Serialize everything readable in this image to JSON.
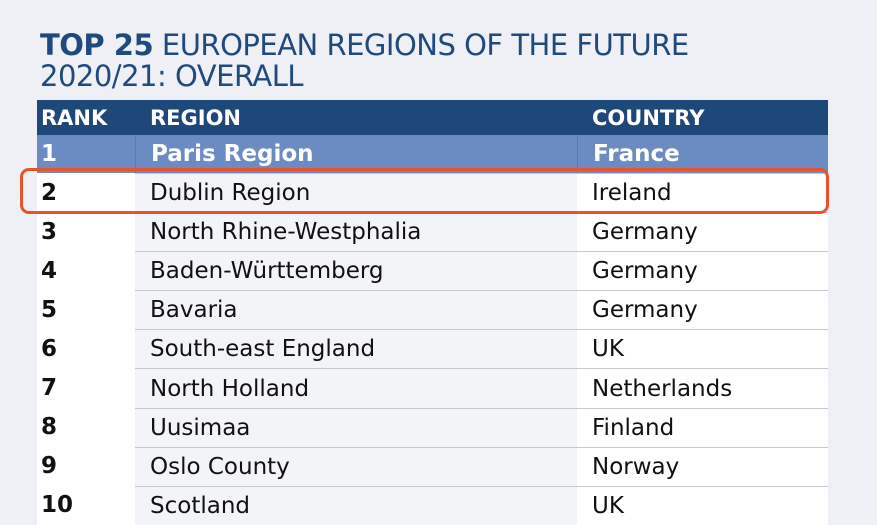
{
  "title": {
    "bold": "TOP 25",
    "rest_line1": " EUROPEAN REGIONS OF THE FUTURE",
    "line2": "2020/21: OVERALL"
  },
  "columns": [
    "RANK",
    "REGION",
    "COUNTRY"
  ],
  "rows": [
    {
      "rank": "1",
      "region": "Paris Region",
      "country": "France"
    },
    {
      "rank": "2",
      "region": "Dublin Region",
      "country": "Ireland"
    },
    {
      "rank": "3",
      "region": "North Rhine-Westphalia",
      "country": "Germany"
    },
    {
      "rank": "4",
      "region": "Baden-Württemberg",
      "country": "Germany"
    },
    {
      "rank": "5",
      "region": "Bavaria",
      "country": "Germany"
    },
    {
      "rank": "6",
      "region": "South-east England",
      "country": "UK"
    },
    {
      "rank": "7",
      "region": "North Holland",
      "country": "Netherlands"
    },
    {
      "rank": "8",
      "region": "Uusimaa",
      "country": "Finland"
    },
    {
      "rank": "9",
      "region": "Oslo County",
      "country": "Norway"
    },
    {
      "rank": "10",
      "region": "Scotland",
      "country": "UK"
    }
  ],
  "highlighted_rank": "2",
  "colors": {
    "header": "#1e477a",
    "top_row": "#6a8cc3",
    "highlight": "#e8532b",
    "title": "#1f4a7e"
  }
}
